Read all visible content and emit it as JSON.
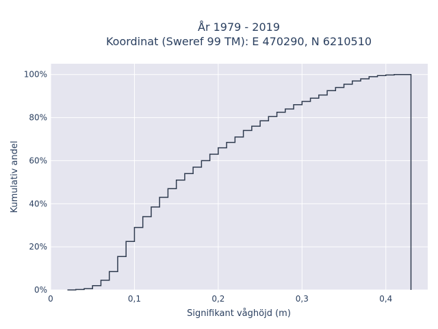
{
  "chart_data": {
    "type": "line",
    "step": "post",
    "title_lines": [
      "År 1979 - 2019",
      "Koordinat (Sweref 99 TM): E 470290, N 6210510"
    ],
    "xlabel": "Signifikant våghöjd (m)",
    "ylabel": "Kumulativ andel",
    "xlim": [
      0,
      0.45
    ],
    "ylim": [
      0,
      1.05
    ],
    "x_ticks": [
      0,
      0.1,
      0.2,
      0.3,
      0.4
    ],
    "x_tick_labels": [
      "0",
      "0,1",
      "0,2",
      "0,3",
      "0,4"
    ],
    "y_ticks": [
      0,
      0.2,
      0.4,
      0.6,
      0.8,
      1.0
    ],
    "y_tick_labels": [
      "0%",
      "20%",
      "40%",
      "60%",
      "80%",
      "100%"
    ],
    "grid": true,
    "line_color": "#2e3a4e",
    "plot_background": "#e5e5ef",
    "series": [
      {
        "x": [
          0.02,
          0.03,
          0.04,
          0.05,
          0.06,
          0.07,
          0.08,
          0.09,
          0.1,
          0.11,
          0.12,
          0.13,
          0.14,
          0.15,
          0.16,
          0.17,
          0.18,
          0.19,
          0.2,
          0.21,
          0.22,
          0.23,
          0.24,
          0.25,
          0.26,
          0.27,
          0.28,
          0.29,
          0.3,
          0.31,
          0.32,
          0.33,
          0.34,
          0.35,
          0.36,
          0.37,
          0.38,
          0.39,
          0.4,
          0.41,
          0.42,
          0.43,
          0.43
        ],
        "y": [
          0.0,
          0.002,
          0.006,
          0.02,
          0.045,
          0.085,
          0.155,
          0.225,
          0.29,
          0.34,
          0.385,
          0.43,
          0.47,
          0.51,
          0.54,
          0.57,
          0.6,
          0.63,
          0.66,
          0.685,
          0.71,
          0.74,
          0.76,
          0.785,
          0.805,
          0.825,
          0.84,
          0.86,
          0.875,
          0.89,
          0.905,
          0.925,
          0.94,
          0.955,
          0.97,
          0.98,
          0.99,
          0.995,
          0.998,
          1.0,
          1.0,
          1.0,
          0.0
        ]
      }
    ]
  }
}
